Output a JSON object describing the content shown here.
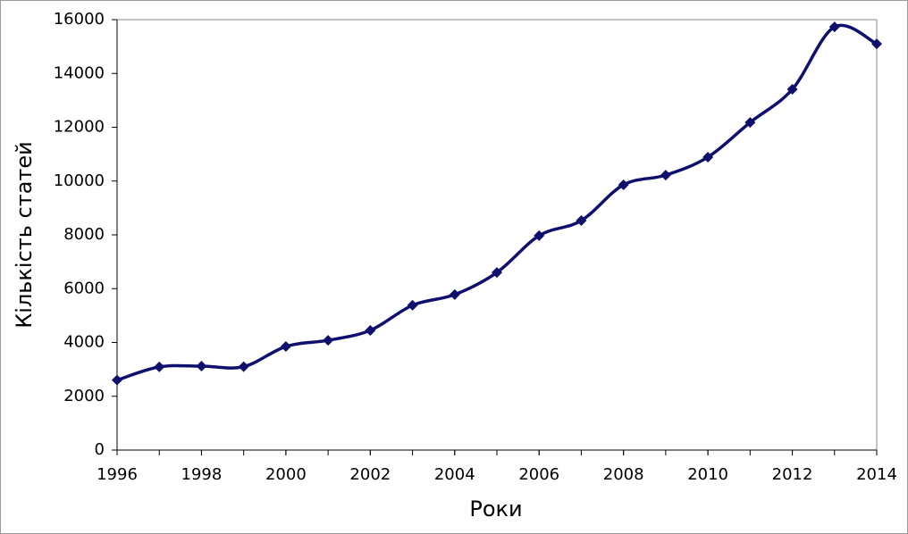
{
  "chart_data": {
    "type": "line",
    "xlabel": "Роки",
    "ylabel": "Кількість статей",
    "x": [
      1996,
      1997,
      1998,
      1999,
      2000,
      2001,
      2002,
      2003,
      2004,
      2005,
      2006,
      2007,
      2008,
      2009,
      2010,
      2011,
      2012,
      2013,
      2014
    ],
    "series": [
      {
        "color": "#0f0f6e",
        "values": [
          2600,
          3090,
          3120,
          3100,
          3850,
          4080,
          4450,
          5380,
          5780,
          6600,
          7970,
          8530,
          9860,
          10220,
          10890,
          12180,
          13410,
          15730,
          15100
        ]
      }
    ],
    "xlim": [
      1996,
      2014
    ],
    "xticks": [
      1996,
      1998,
      2000,
      2002,
      2004,
      2006,
      2008,
      2010,
      2012,
      2014
    ],
    "ylim": [
      0,
      16000
    ],
    "yticks": [
      0,
      2000,
      4000,
      6000,
      8000,
      10000,
      12000,
      14000,
      16000
    ],
    "smooth": true,
    "marker": "diamond"
  }
}
